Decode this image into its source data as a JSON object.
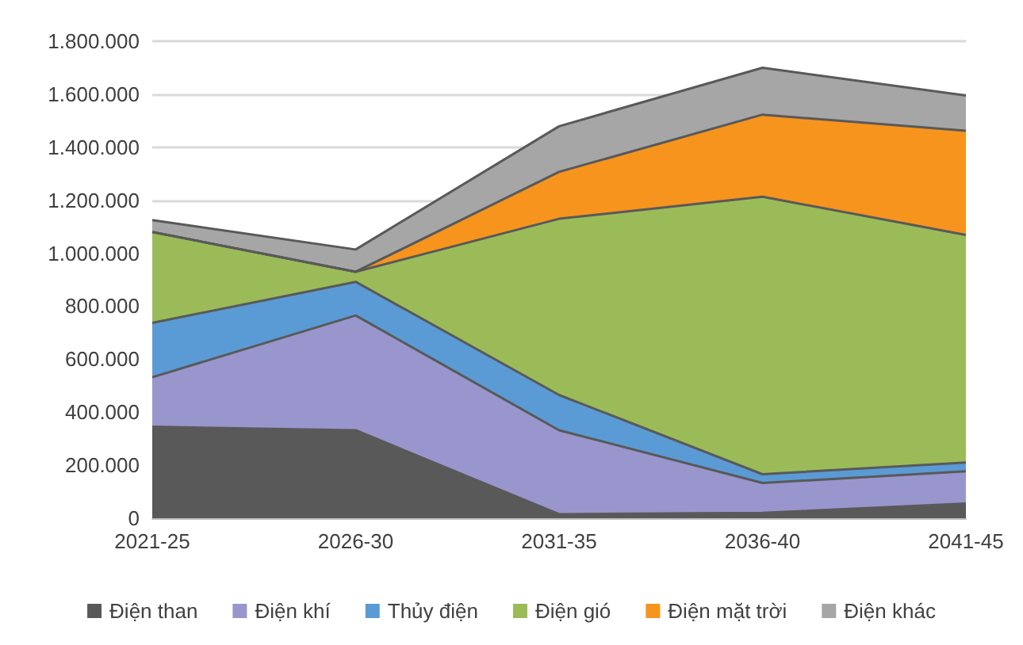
{
  "chart_data": {
    "type": "area",
    "stacked": true,
    "categories": [
      "2021-25",
      "2026-30",
      "2031-35",
      "2036-40",
      "2041-45"
    ],
    "series": [
      {
        "name": "Điện than",
        "color": "#595959",
        "values": [
          345000,
          332000,
          15000,
          20000,
          55000
        ]
      },
      {
        "name": "Điện khí",
        "color": "#9896cc",
        "values": [
          187000,
          433000,
          317000,
          113000,
          122000
        ]
      },
      {
        "name": "Thủy điện",
        "color": "#5b9bd5",
        "values": [
          205000,
          127000,
          133000,
          33000,
          33000
        ]
      },
      {
        "name": "Điện gió",
        "color": "#9bbb59",
        "values": [
          343000,
          38000,
          665000,
          1047000,
          859000
        ]
      },
      {
        "name": "Điện mặt trời",
        "color": "#f7941d",
        "values": [
          0,
          0,
          177000,
          310000,
          393000
        ]
      },
      {
        "name": "Điện khác",
        "color": "#a6a6a6",
        "values": [
          45000,
          84000,
          172000,
          177000,
          133000
        ]
      }
    ],
    "ylim": [
      0,
      1800000
    ],
    "yticks": [
      {
        "value": 0,
        "label": "0"
      },
      {
        "value": 200000,
        "label": "200.000"
      },
      {
        "value": 400000,
        "label": "400.000"
      },
      {
        "value": 600000,
        "label": "600.000"
      },
      {
        "value": 800000,
        "label": "800.000"
      },
      {
        "value": 1000000,
        "label": "1.000.000"
      },
      {
        "value": 1200000,
        "label": "1.200.000"
      },
      {
        "value": 1400000,
        "label": "1.400.000"
      },
      {
        "value": 1600000,
        "label": "1.600.000"
      },
      {
        "value": 1800000,
        "label": "1.800.000"
      }
    ],
    "grid": "y",
    "legend": "bottom"
  }
}
